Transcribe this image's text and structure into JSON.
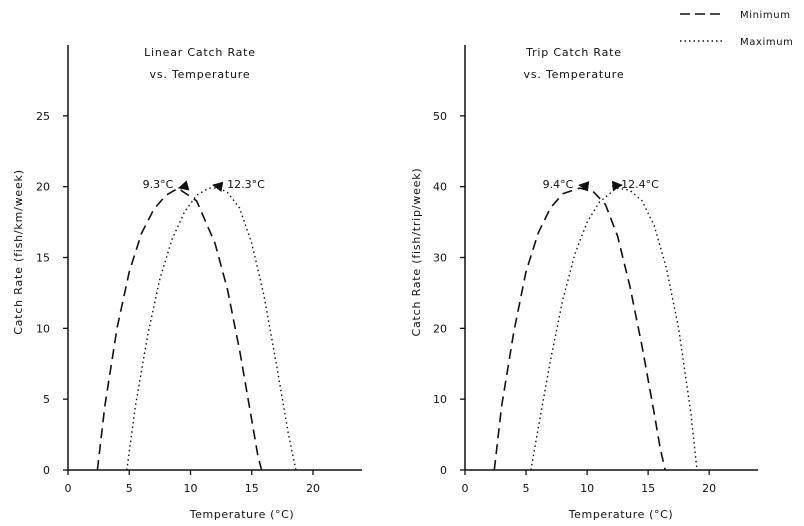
{
  "legend": {
    "items": [
      {
        "label": "Minimum",
        "style": "dashed"
      },
      {
        "label": "Maximum",
        "style": "dotted"
      }
    ],
    "placement": "top-right"
  },
  "chart_data": [
    {
      "type": "line",
      "title_lines": [
        "Linear Catch Rate",
        "vs. Temperature"
      ],
      "xlabel": "Temperature (°C)",
      "ylabel": "Catch Rate (fish/km/week)",
      "xlim": [
        0,
        24
      ],
      "ylim": [
        0,
        30
      ],
      "xticks": [
        0,
        5,
        10,
        15,
        20
      ],
      "yticks": [
        0,
        5,
        10,
        15,
        20,
        25
      ],
      "grid": false,
      "series": [
        {
          "name": "Minimum",
          "style": "dashed",
          "x": [
            2.4,
            3.0,
            4.0,
            5.0,
            6.0,
            7.0,
            8.0,
            9.0,
            9.3,
            10.5,
            12.0,
            13.0,
            14.0,
            15.0,
            15.5,
            15.8
          ],
          "y": [
            0,
            4.5,
            10.0,
            14.0,
            16.7,
            18.4,
            19.4,
            19.9,
            19.7,
            19.0,
            16.0,
            12.8,
            8.5,
            3.5,
            1.0,
            0
          ]
        },
        {
          "name": "Maximum",
          "style": "dotted",
          "x": [
            4.8,
            5.5,
            6.5,
            7.5,
            8.5,
            9.5,
            10.5,
            11.5,
            12.3,
            13.0,
            14.0,
            15.0,
            16.0,
            17.0,
            18.0,
            18.6
          ],
          "y": [
            0,
            4.5,
            9.5,
            13.5,
            16.3,
            18.2,
            19.4,
            19.9,
            19.9,
            19.6,
            18.5,
            16.0,
            12.3,
            7.5,
            2.5,
            0
          ]
        }
      ],
      "annotations": [
        {
          "text": "9.3°C",
          "target": [
            9.3,
            19.7
          ]
        },
        {
          "text": "12.3°C",
          "target": [
            11.6,
            19.9
          ]
        }
      ]
    },
    {
      "type": "line",
      "title_lines": [
        "Trip Catch Rate",
        "vs. Temperature"
      ],
      "xlabel": "Temperature (°C)",
      "ylabel": "Catch Rate (fish/trip/week)",
      "xlim": [
        0,
        24
      ],
      "ylim": [
        0,
        60
      ],
      "xticks": [
        0,
        5,
        10,
        15,
        20
      ],
      "yticks": [
        0,
        10,
        20,
        30,
        40,
        50
      ],
      "grid": false,
      "series": [
        {
          "name": "Minimum",
          "style": "dashed",
          "x": [
            2.4,
            3.0,
            4.0,
            5.0,
            6.0,
            7.0,
            8.0,
            9.4,
            10.5,
            11.5,
            12.5,
            13.5,
            14.5,
            15.5,
            16.0,
            16.4
          ],
          "y": [
            0,
            9.0,
            19.5,
            28.0,
            33.5,
            37.0,
            39.0,
            39.8,
            39.3,
            37.5,
            33.0,
            26.0,
            17.5,
            8.0,
            3.0,
            0
          ]
        },
        {
          "name": "Maximum",
          "style": "dotted",
          "x": [
            5.4,
            6.0,
            7.0,
            8.0,
            9.0,
            10.0,
            11.0,
            12.4,
            13.5,
            14.5,
            15.5,
            16.5,
            17.5,
            18.5,
            19.0
          ],
          "y": [
            0,
            6.0,
            15.5,
            24.0,
            30.5,
            35.0,
            37.8,
            39.8,
            39.5,
            38.0,
            34.5,
            28.5,
            20.0,
            8.0,
            0
          ]
        }
      ],
      "annotations": [
        {
          "text": "9.4°C",
          "target": [
            9.6,
            39.8
          ]
        },
        {
          "text": "12.4°C",
          "target": [
            12.6,
            39.8
          ]
        }
      ]
    }
  ]
}
